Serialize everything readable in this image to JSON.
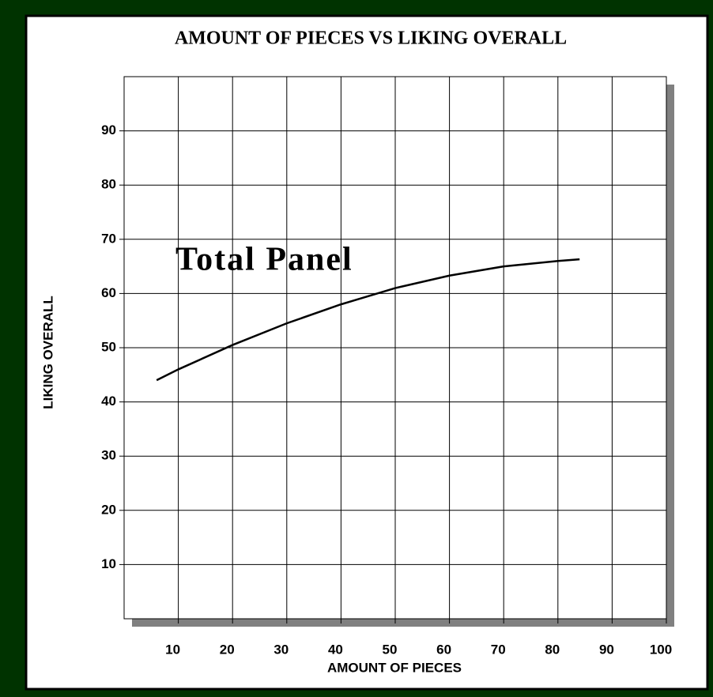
{
  "chart_data": {
    "type": "line",
    "title": "AMOUNT OF PIECES VS LIKING OVERALL",
    "xlabel": "AMOUNT OF PIECES",
    "ylabel": "LIKING OVERALL",
    "annotation": "Total Panel",
    "series": [
      {
        "name": "Total Panel",
        "color": "#000000",
        "x": [
          6,
          10,
          20,
          30,
          40,
          50,
          60,
          70,
          80,
          84
        ],
        "values": [
          44,
          46,
          50.5,
          54.5,
          58,
          61,
          63.3,
          65,
          66,
          66.3
        ]
      }
    ],
    "xlim": [
      0,
      100
    ],
    "xticks": [
      10,
      20,
      30,
      40,
      50,
      60,
      70,
      80,
      90,
      100
    ],
    "ylim": [
      0,
      100
    ],
    "yticks": [
      10,
      20,
      30,
      40,
      50,
      60,
      70,
      80,
      90
    ],
    "grid": true
  }
}
